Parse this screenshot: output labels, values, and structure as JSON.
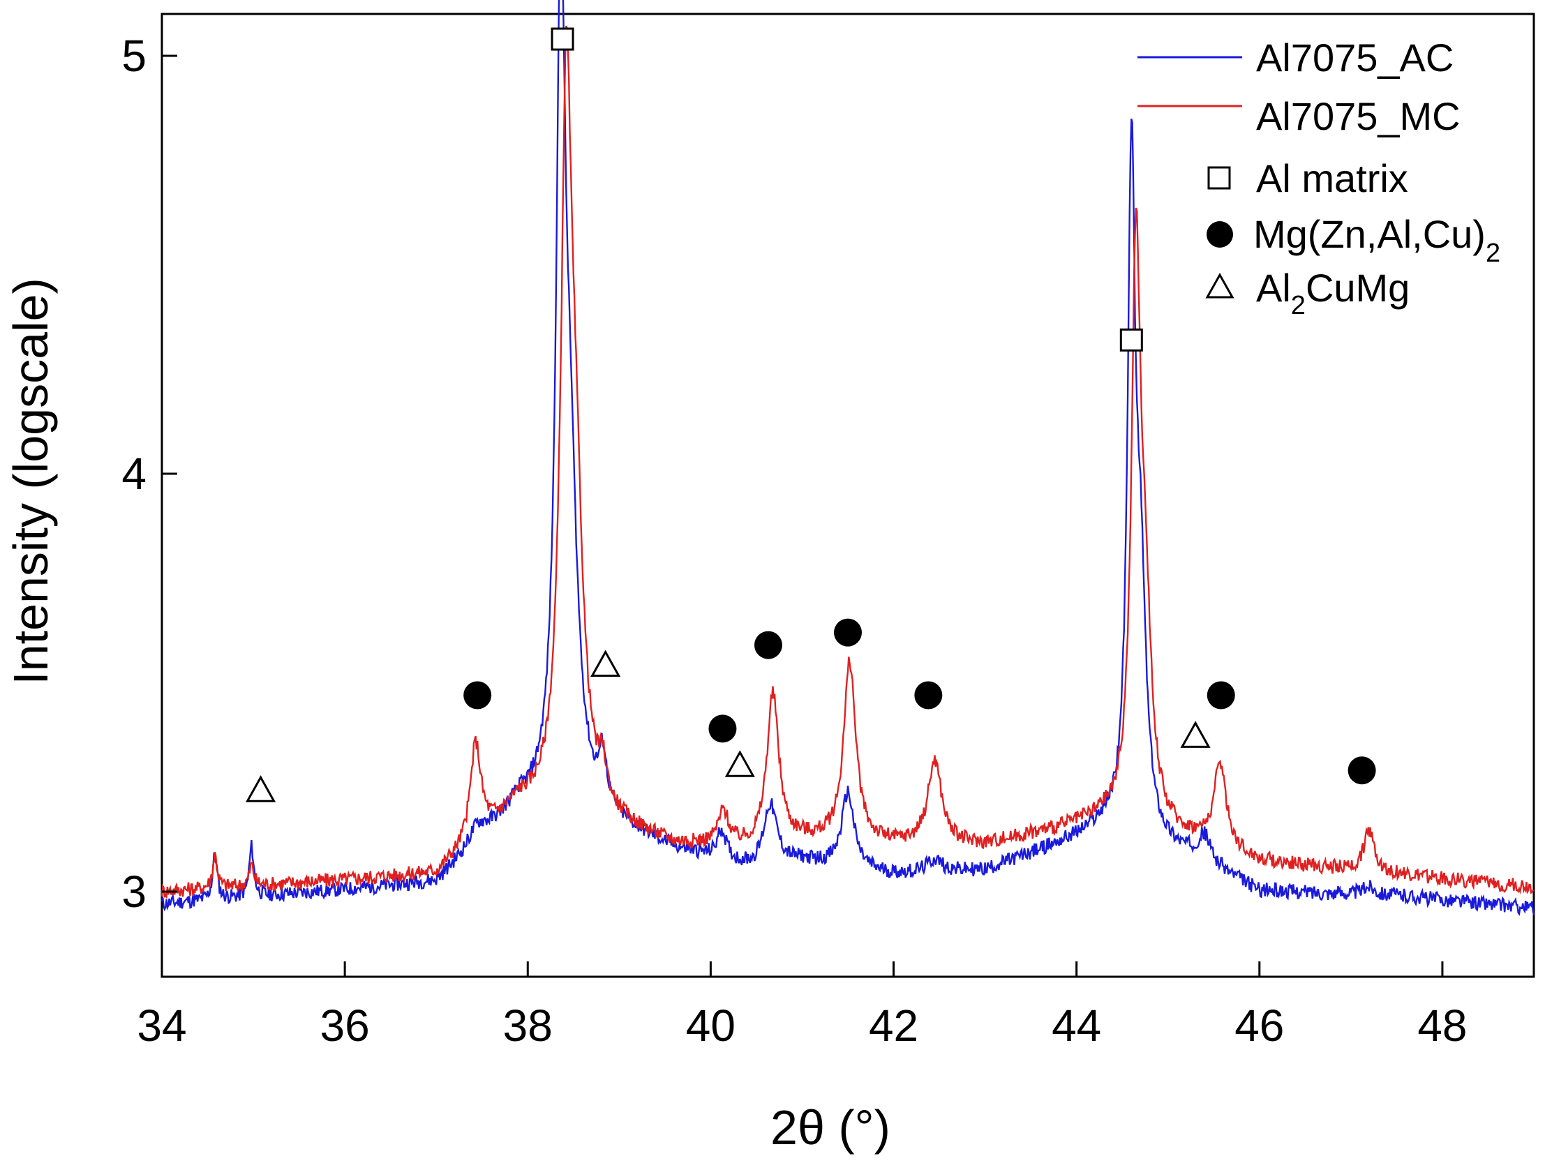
{
  "chart_data": {
    "type": "line",
    "title": "",
    "xlabel": "2θ (°)",
    "ylabel": "Intensity (logscale)",
    "xlim": [
      34,
      49
    ],
    "ylim": [
      2.8,
      5.1
    ],
    "xticks": [
      34,
      36,
      38,
      40,
      42,
      44,
      46,
      48
    ],
    "xtick_labels": [
      "34",
      "36",
      "38",
      "40",
      "42",
      "44",
      "46",
      "48"
    ],
    "yticks": [
      3,
      4,
      5
    ],
    "ytick_labels": [
      "3",
      "4",
      "5"
    ],
    "legend_position": "top-right",
    "colors": {
      "AC": "#1a1adc",
      "MC": "#e02020"
    },
    "series": [
      {
        "name": "Al7075_AC",
        "color": "#1a1adc",
        "baseline": [
          [
            34,
            2.97
          ],
          [
            37,
            3.02
          ],
          [
            37.9,
            3.2
          ],
          [
            38.9,
            3.16
          ],
          [
            39.6,
            3.1
          ],
          [
            40.5,
            3.05
          ],
          [
            41.0,
            3.07
          ],
          [
            42.0,
            3.04
          ],
          [
            43.0,
            3.05
          ],
          [
            44.3,
            3.15
          ],
          [
            45.3,
            3.08
          ],
          [
            46.0,
            3.0
          ],
          [
            47.5,
            2.99
          ],
          [
            49,
            2.96
          ]
        ],
        "peaks": [
          {
            "x": 34.58,
            "h": 0.11,
            "w": 0.03
          },
          {
            "x": 34.98,
            "h": 0.12,
            "w": 0.03
          },
          {
            "x": 37.45,
            "h": 0.04,
            "w": 0.12
          },
          {
            "x": 38.36,
            "h": 1.8,
            "w": 0.06
          },
          {
            "x": 38.46,
            "h": 0.7,
            "w": 0.1
          },
          {
            "x": 38.82,
            "h": 0.12,
            "w": 0.05
          },
          {
            "x": 40.12,
            "h": 0.07,
            "w": 0.06
          },
          {
            "x": 40.65,
            "h": 0.15,
            "w": 0.09
          },
          {
            "x": 41.5,
            "h": 0.18,
            "w": 0.08
          },
          {
            "x": 42.45,
            "h": 0.03,
            "w": 0.1
          },
          {
            "x": 44.6,
            "h": 1.55,
            "w": 0.05
          },
          {
            "x": 44.7,
            "h": 0.55,
            "w": 0.07
          },
          {
            "x": 45.4,
            "h": 0.06,
            "w": 0.08
          },
          {
            "x": 47.2,
            "h": 0.02,
            "w": 0.08
          }
        ]
      },
      {
        "name": "Al7075_MC",
        "color": "#e02020",
        "baseline": [
          [
            34,
            3.0
          ],
          [
            37,
            3.04
          ],
          [
            37.9,
            3.2
          ],
          [
            38.9,
            3.16
          ],
          [
            39.6,
            3.11
          ],
          [
            40.5,
            3.1
          ],
          [
            41.0,
            3.12
          ],
          [
            42.0,
            3.11
          ],
          [
            43.0,
            3.11
          ],
          [
            44.3,
            3.17
          ],
          [
            45.3,
            3.12
          ],
          [
            46.0,
            3.07
          ],
          [
            47.5,
            3.04
          ],
          [
            49,
            3.01
          ]
        ],
        "peaks": [
          {
            "x": 34.58,
            "h": 0.08,
            "w": 0.03
          },
          {
            "x": 34.98,
            "h": 0.05,
            "w": 0.03
          },
          {
            "x": 37.43,
            "h": 0.23,
            "w": 0.07
          },
          {
            "x": 38.42,
            "h": 1.55,
            "w": 0.07
          },
          {
            "x": 38.52,
            "h": 0.65,
            "w": 0.1
          },
          {
            "x": 38.82,
            "h": 0.08,
            "w": 0.05
          },
          {
            "x": 40.14,
            "h": 0.08,
            "w": 0.07
          },
          {
            "x": 40.68,
            "h": 0.36,
            "w": 0.08
          },
          {
            "x": 41.52,
            "h": 0.43,
            "w": 0.08
          },
          {
            "x": 42.45,
            "h": 0.2,
            "w": 0.09
          },
          {
            "x": 44.65,
            "h": 1.3,
            "w": 0.06
          },
          {
            "x": 44.75,
            "h": 0.45,
            "w": 0.08
          },
          {
            "x": 45.57,
            "h": 0.2,
            "w": 0.08
          },
          {
            "x": 47.2,
            "h": 0.1,
            "w": 0.07
          }
        ]
      }
    ],
    "phase_markers": [
      {
        "phase": "Al matrix",
        "symbol": "square",
        "x": 38.38,
        "y": 5.04
      },
      {
        "phase": "Al matrix",
        "symbol": "square",
        "x": 44.6,
        "y": 4.32
      },
      {
        "phase": "Mg(Zn,Al,Cu)2",
        "symbol": "circle",
        "x": 37.45,
        "y": 3.47
      },
      {
        "phase": "Mg(Zn,Al,Cu)2",
        "symbol": "circle",
        "x": 40.13,
        "y": 3.39
      },
      {
        "phase": "Mg(Zn,Al,Cu)2",
        "symbol": "circle",
        "x": 40.63,
        "y": 3.59
      },
      {
        "phase": "Mg(Zn,Al,Cu)2",
        "symbol": "circle",
        "x": 41.5,
        "y": 3.62
      },
      {
        "phase": "Mg(Zn,Al,Cu)2",
        "symbol": "circle",
        "x": 42.38,
        "y": 3.47
      },
      {
        "phase": "Mg(Zn,Al,Cu)2",
        "symbol": "circle",
        "x": 45.58,
        "y": 3.47
      },
      {
        "phase": "Mg(Zn,Al,Cu)2",
        "symbol": "circle",
        "x": 47.12,
        "y": 3.29
      },
      {
        "phase": "Al2CuMg",
        "symbol": "triangle",
        "x": 35.08,
        "y": 3.24
      },
      {
        "phase": "Al2CuMg",
        "symbol": "triangle",
        "x": 38.85,
        "y": 3.54
      },
      {
        "phase": "Al2CuMg",
        "symbol": "triangle",
        "x": 40.32,
        "y": 3.3
      },
      {
        "phase": "Al2CuMg",
        "symbol": "triangle",
        "x": 45.3,
        "y": 3.37
      }
    ],
    "legend": [
      {
        "kind": "line",
        "label": "Al7075_AC",
        "color": "#1a1adc"
      },
      {
        "kind": "line",
        "label": "Al7075_MC",
        "color": "#e02020"
      },
      {
        "kind": "square",
        "label": "Al matrix"
      },
      {
        "kind": "circle",
        "label_main": "Mg(Zn,Al,Cu)",
        "label_sub": "2"
      },
      {
        "kind": "triangle",
        "label_pre": "Al",
        "label_sub": "2",
        "label_post": "CuMg"
      }
    ]
  }
}
